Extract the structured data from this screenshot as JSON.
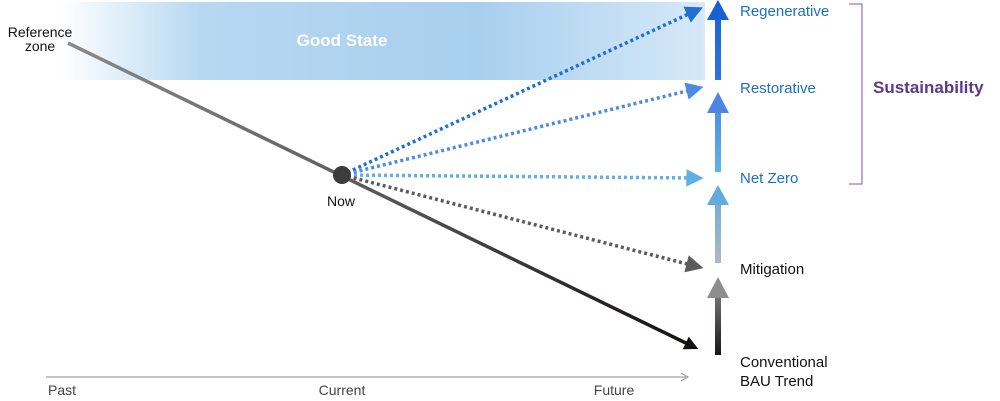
{
  "band": {
    "label": "Good State"
  },
  "start": {
    "label_line1": "Reference",
    "label_line2": "zone"
  },
  "now": {
    "label": "Now"
  },
  "timeline": {
    "past": "Past",
    "current": "Current",
    "future": "Future"
  },
  "outcomes": {
    "regenerative": "Regenerative",
    "restorative": "Restorative",
    "net_zero": "Net Zero",
    "mitigation": "Mitigation",
    "bau_line1": "Conventional",
    "bau_line2": "BAU Trend"
  },
  "bracket": {
    "label": "Sustainability"
  },
  "colors": {
    "band_blue": "#a9cfee",
    "regenerative": "#1f6fd6",
    "restorative": "#4a8de0",
    "net_zero": "#5fb0e6",
    "mitigation": "#5c5c5c",
    "bau": "#1a1414",
    "label_blue": "#1d6fc2",
    "bracket_purple": "#5b3a8c"
  }
}
